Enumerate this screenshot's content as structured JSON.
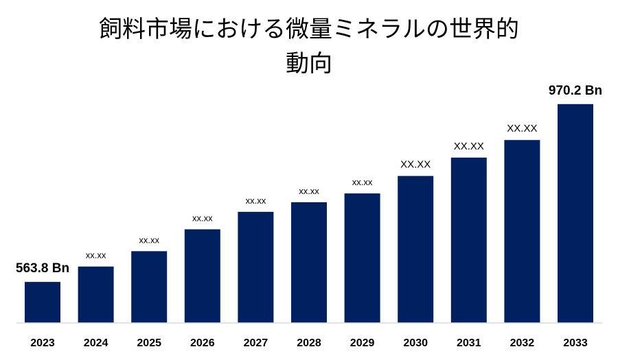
{
  "chart_data": {
    "type": "bar",
    "title_lines": [
      "飼料市場における微量ミネラルの世界的",
      "動向"
    ],
    "xlabel": "",
    "ylabel": "",
    "categories": [
      "2023",
      "2024",
      "2025",
      "2026",
      "2027",
      "2028",
      "2029",
      "2030",
      "2031",
      "2032",
      "2033"
    ],
    "values": [
      563.8,
      599,
      634,
      684,
      724,
      746,
      766,
      806,
      848,
      888,
      970.2
    ],
    "data_labels": [
      "563.8 Bn",
      "xx.xx",
      "xx.xx",
      "xx.xx",
      "xx.xx",
      "xx.xx",
      "xx.xx",
      "XX.XX",
      "XX.XX",
      "XX.XX",
      "970.2 Bn"
    ],
    "ylim": [
      470,
      1020
    ],
    "grid": false,
    "legend": "none",
    "bar_color": "#002060",
    "axis_color": "#d9d9d9"
  }
}
